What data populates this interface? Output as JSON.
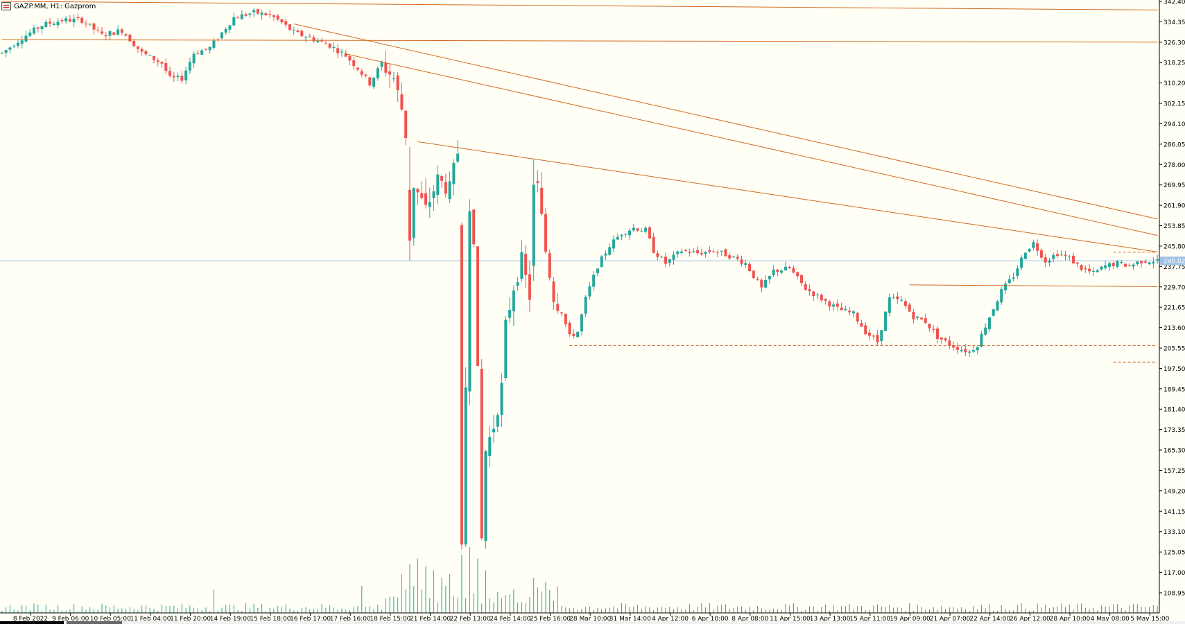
{
  "window": {
    "title": "GAZP.MM, H1:  Gazprom"
  },
  "colors": {
    "background": "#fffff5",
    "bull_candle": "#26a69a",
    "bear_candle": "#ef5350",
    "trendline": "#d2691e",
    "current_price_line": "#9ec3e6",
    "volume": "#26a69a",
    "axis": "#000000",
    "current_price_label_bg": "#9ec3e6"
  },
  "chart_data": {
    "type": "candlestick",
    "symbol": "GAZP.MM",
    "timeframe": "H1",
    "instrument": "Gazprom",
    "current_price_label": "240.02",
    "current_price": 240.02,
    "ylim": [
      101.0,
      342.4
    ],
    "y_ticks": [
      342.4,
      334.35,
      326.3,
      318.25,
      310.2,
      302.15,
      294.1,
      286.05,
      278.0,
      269.95,
      261.9,
      253.85,
      245.8,
      237.75,
      229.7,
      221.65,
      213.6,
      205.55,
      197.5,
      189.45,
      181.4,
      173.35,
      165.3,
      157.25,
      149.2,
      141.15,
      133.1,
      125.05,
      117.0,
      108.95
    ],
    "x_ticks": [
      "8 Feb 2022",
      "9 Feb 06:00",
      "10 Feb 05:00",
      "11 Feb 04:00",
      "11 Feb 20:00",
      "14 Feb 19:00",
      "15 Feb 18:00",
      "16 Feb 17:00",
      "17 Feb 16:00",
      "18 Feb 15:00",
      "21 Feb 14:00",
      "22 Feb 13:00",
      "24 Feb 14:00",
      "25 Feb 16:00",
      "28 Mar 10:00",
      "31 Mar 14:00",
      "4 Apr 12:00",
      "6 Apr 10:00",
      "8 Apr 08:00",
      "11 Apr 15:00",
      "13 Apr 13:00",
      "15 Apr 11:00",
      "19 Apr 09:00",
      "21 Apr 07:00",
      "22 Apr 14:00",
      "26 Apr 12:00",
      "28 Apr 10:00",
      "4 May 08:00",
      "5 May 15:00"
    ],
    "bars_shown": 290,
    "close_path": [
      [
        0,
        322
      ],
      [
        5,
        328
      ],
      [
        10,
        333
      ],
      [
        15,
        335
      ],
      [
        20,
        335
      ],
      [
        25,
        329
      ],
      [
        30,
        331
      ],
      [
        35,
        322
      ],
      [
        40,
        318
      ],
      [
        42,
        312
      ],
      [
        45,
        312
      ],
      [
        48,
        322
      ],
      [
        52,
        324
      ],
      [
        58,
        336
      ],
      [
        63,
        338
      ],
      [
        67,
        337
      ],
      [
        70,
        334
      ],
      [
        73,
        330
      ],
      [
        77,
        328
      ],
      [
        82,
        325
      ],
      [
        86,
        321
      ],
      [
        89,
        316
      ],
      [
        92,
        310
      ],
      [
        95,
        318
      ],
      [
        98,
        312
      ],
      [
        100,
        300
      ],
      [
        103,
        270
      ],
      [
        106,
        260
      ],
      [
        109,
        272
      ],
      [
        112,
        268
      ],
      [
        114,
        283
      ],
      [
        116,
        276
      ],
      [
        118,
        250
      ],
      [
        119,
        195
      ],
      [
        120,
        130
      ],
      [
        121,
        165
      ],
      [
        123,
        175
      ],
      [
        125,
        190
      ],
      [
        126,
        214
      ],
      [
        128,
        230
      ],
      [
        130,
        240
      ],
      [
        132,
        226
      ],
      [
        134,
        269
      ],
      [
        136,
        244
      ],
      [
        138,
        226
      ],
      [
        140,
        220
      ],
      [
        142,
        210
      ],
      [
        144,
        212
      ],
      [
        146,
        225
      ],
      [
        149,
        238
      ],
      [
        152,
        246
      ],
      [
        155,
        251
      ],
      [
        158,
        253
      ],
      [
        161,
        252
      ],
      [
        163,
        244
      ],
      [
        166,
        239
      ],
      [
        170,
        244
      ],
      [
        174,
        243
      ],
      [
        178,
        244
      ],
      [
        182,
        242
      ],
      [
        186,
        239
      ],
      [
        190,
        229
      ],
      [
        193,
        236
      ],
      [
        197,
        237
      ],
      [
        201,
        229
      ],
      [
        205,
        225
      ],
      [
        209,
        221
      ],
      [
        213,
        219
      ],
      [
        216,
        212
      ],
      [
        219,
        208
      ],
      [
        222,
        225
      ],
      [
        225,
        224
      ],
      [
        228,
        218
      ],
      [
        231,
        216
      ],
      [
        234,
        210
      ],
      [
        237,
        207
      ],
      [
        240,
        205
      ],
      [
        242,
        204
      ],
      [
        244,
        207
      ],
      [
        247,
        218
      ],
      [
        250,
        228
      ],
      [
        253,
        234
      ],
      [
        256,
        244
      ],
      [
        258,
        247
      ],
      [
        261,
        240
      ],
      [
        264,
        243
      ],
      [
        267,
        241
      ],
      [
        270,
        237
      ],
      [
        273,
        235
      ],
      [
        276,
        238
      ],
      [
        279,
        239
      ],
      [
        282,
        238
      ],
      [
        285,
        240
      ],
      [
        289,
        240.02
      ]
    ],
    "big_moves": [
      {
        "bar": 115,
        "open": 254,
        "close": 128,
        "high": 255,
        "low": 126
      },
      {
        "bar": 116,
        "open": 128,
        "close": 190,
        "high": 198,
        "low": 127
      },
      {
        "bar": 133,
        "open": 238,
        "close": 270,
        "high": 280,
        "low": 232
      },
      {
        "bar": 102,
        "open": 268,
        "close": 248,
        "high": 285,
        "low": 240
      }
    ],
    "trendlines": [
      {
        "from": [
          0,
          342.4
        ],
        "to": [
          289,
          339.0
        ]
      },
      {
        "from": [
          0,
          327.3
        ],
        "to": [
          289,
          326.3
        ]
      },
      {
        "from": [
          73,
          333.5
        ],
        "to": [
          289,
          256.5
        ]
      },
      {
        "from": [
          86,
          321.7
        ],
        "to": [
          289,
          250.0
        ]
      },
      {
        "from": [
          104,
          287.0
        ],
        "to": [
          289,
          243.5
        ]
      },
      {
        "from": [
          227,
          230.5
        ],
        "to": [
          289,
          229.8
        ]
      }
    ],
    "dashed_levels": [
      {
        "from_bar": 142,
        "to_bar": 289,
        "value": 206.5
      },
      {
        "from_bar": 278,
        "to_bar": 289,
        "value": 243.4
      },
      {
        "from_bar": 278,
        "to_bar": 289,
        "value": 200.0
      }
    ],
    "volume": {
      "spikes": [
        [
          100,
          20
        ],
        [
          102,
          25
        ],
        [
          104,
          28
        ],
        [
          106,
          24
        ],
        [
          108,
          22
        ],
        [
          110,
          18
        ],
        [
          112,
          20
        ],
        [
          115,
          30
        ],
        [
          117,
          34
        ],
        [
          119,
          28
        ],
        [
          121,
          22
        ],
        [
          133,
          18
        ],
        [
          136,
          16
        ],
        [
          53,
          12
        ],
        [
          90,
          14
        ]
      ]
    }
  }
}
